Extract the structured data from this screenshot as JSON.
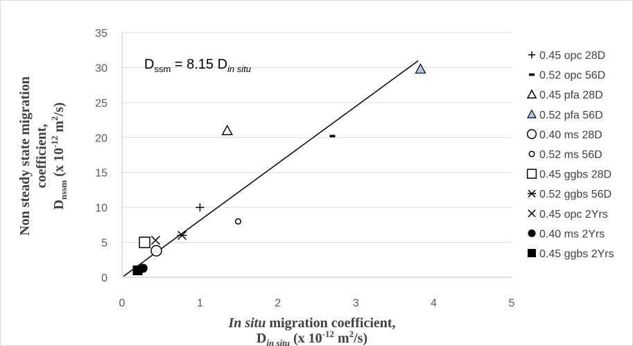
{
  "chart_data": {
    "type": "scatter",
    "xlim": [
      0,
      5
    ],
    "ylim": [
      0,
      35
    ],
    "xticks": [
      "0",
      "1",
      "2",
      "3",
      "4",
      "5"
    ],
    "yticks": [
      "0",
      "5",
      "10",
      "15",
      "20",
      "25",
      "30",
      "35"
    ],
    "grid": "horizontal",
    "legend_position": "right",
    "ylabel_lines": [
      "Non steady state migration",
      "coefficient,"
    ],
    "ylabel_symbol": {
      "main": "D",
      "sub": "nssm",
      "unit_pre": " (x 10",
      "exp": "-12",
      "unit_mid": " m",
      "exp2": "2",
      "unit_post": "/s)"
    },
    "xlabel_line1": {
      "italic": "In situ",
      "rest": " migration coefficient,"
    },
    "xlabel_line2": {
      "main": "D",
      "sub": "in situ",
      "unit_pre": " (x 10",
      "exp": "-12",
      "unit_mid": " m",
      "exp2": "2",
      "unit_post": "/s)"
    },
    "equation": {
      "lhs": "D",
      "lhs_sub": "ssm",
      "mid": " = 8.15 D",
      "rhs_sub": "in situ"
    },
    "fit_line": {
      "slope": 8.15,
      "x_start": 0.02,
      "x_end": 3.8
    },
    "series": [
      {
        "name": "0.45 opc 28D",
        "marker": "plus",
        "points": [
          [
            1.0,
            10.0
          ]
        ]
      },
      {
        "name": "0.52 opc 56D",
        "marker": "dash",
        "points": [
          [
            2.7,
            20.2
          ]
        ]
      },
      {
        "name": "0.45 pfa 28D",
        "marker": "triangle-open",
        "points": [
          [
            1.35,
            21.0
          ]
        ]
      },
      {
        "name": "0.52 pfa 56D",
        "marker": "triangle-filled",
        "color": "#b4c7e7",
        "points": [
          [
            3.83,
            29.8
          ]
        ]
      },
      {
        "name": "0.40 ms 28D",
        "marker": "circle-large",
        "points": [
          [
            0.44,
            3.8
          ]
        ]
      },
      {
        "name": "0.52 ms 56D",
        "marker": "circle-small",
        "points": [
          [
            1.49,
            8.0
          ]
        ]
      },
      {
        "name": "0.45 ggbs 28D",
        "marker": "square-open",
        "points": [
          [
            0.29,
            5.0
          ]
        ]
      },
      {
        "name": "0.52 ggbs 56D",
        "marker": "asterisk",
        "points": [
          [
            0.77,
            6.0
          ]
        ]
      },
      {
        "name": "0.45 opc 2Yrs",
        "marker": "cross",
        "points": [
          [
            0.43,
            5.3
          ]
        ]
      },
      {
        "name": "0.40 ms 2Yrs",
        "marker": "circle-filled",
        "points": [
          [
            0.27,
            1.3
          ]
        ]
      },
      {
        "name": "0.45 ggbs 2Yrs",
        "marker": "square-filled",
        "points": [
          [
            0.2,
            1.0
          ]
        ]
      }
    ]
  }
}
